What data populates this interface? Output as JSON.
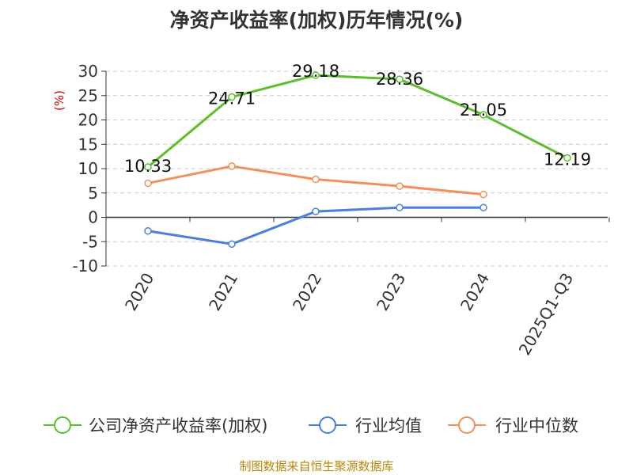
{
  "chart_data": {
    "type": "line",
    "title": "净资产收益率(加权)历年情况(%)",
    "unit_label": "(%)",
    "categories": [
      "2020",
      "2021",
      "2022",
      "2023",
      "2024",
      "2025Q1-Q3"
    ],
    "ylim": [
      -10,
      30
    ],
    "yticks": [
      30,
      25,
      20,
      15,
      10,
      5,
      0,
      -5,
      -10
    ],
    "grid": true,
    "legend_position": "bottom",
    "series": [
      {
        "name": "公司净资产收益率(加权)",
        "color": "#5cbf2a",
        "values": [
          10.33,
          24.71,
          29.18,
          28.36,
          21.05,
          12.19
        ],
        "labels": [
          "10.33",
          "24.71",
          "29.18",
          "28.36",
          "21.05",
          "12.19"
        ]
      },
      {
        "name": "行业均值",
        "color": "#4a7fdc",
        "values": [
          -2.8,
          -5.5,
          1.2,
          2.0,
          2.0,
          null
        ]
      },
      {
        "name": "行业中位数",
        "color": "#f0905a",
        "values": [
          7.0,
          10.5,
          7.8,
          6.4,
          4.7,
          null
        ]
      }
    ],
    "source": "制图数据来自恒生聚源数据库"
  }
}
